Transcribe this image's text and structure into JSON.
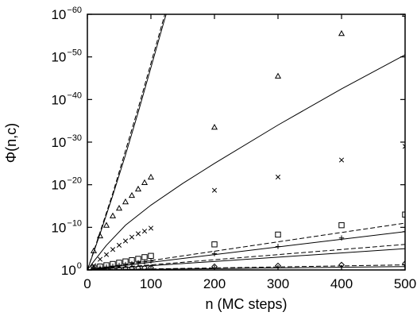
{
  "chart_data": {
    "type": "scatter",
    "xlabel": "n (MC steps)",
    "ylabel": "Φ(n,c)",
    "xlim": [
      0,
      500
    ],
    "ylim_log10": [
      -60,
      0
    ],
    "yscale": "log",
    "grid": false,
    "legend": "none",
    "x_ticks": [
      {
        "value": 0,
        "label": "0"
      },
      {
        "value": 100,
        "label": "100"
      },
      {
        "value": 200,
        "label": "200"
      },
      {
        "value": 300,
        "label": "300"
      },
      {
        "value": 400,
        "label": "400"
      },
      {
        "value": 500,
        "label": "500"
      }
    ],
    "y_ticks": [
      {
        "log10": 0,
        "base": "10",
        "exponent": "0"
      },
      {
        "log10": -10,
        "base": "10",
        "exponent": "−10"
      },
      {
        "log10": -20,
        "base": "10",
        "exponent": "−20"
      },
      {
        "log10": -30,
        "base": "10",
        "exponent": "−30"
      },
      {
        "log10": -40,
        "base": "10",
        "exponent": "−40"
      },
      {
        "log10": -50,
        "base": "10",
        "exponent": "−50"
      },
      {
        "log10": -60,
        "base": "10",
        "exponent": "−60"
      }
    ],
    "series": [
      {
        "marker": "diamond",
        "x": [
          10,
          20,
          30,
          40,
          50,
          60,
          70,
          80,
          90,
          100,
          200,
          300,
          400,
          500
        ],
        "log10_y": [
          -0.1,
          -0.15,
          -0.2,
          -0.25,
          -0.3,
          -0.35,
          -0.4,
          -0.45,
          -0.5,
          -0.55,
          -0.8,
          -1.0,
          -1.2,
          -1.5
        ]
      },
      {
        "marker": "plus",
        "x": [
          10,
          20,
          30,
          40,
          50,
          60,
          70,
          80,
          90,
          100,
          200,
          300,
          400,
          500
        ],
        "log10_y": [
          -0.3,
          -0.5,
          -0.7,
          -0.9,
          -1.1,
          -1.3,
          -1.5,
          -1.7,
          -1.9,
          -2.1,
          -3.8,
          -5.5,
          -7.5,
          -9.0
        ]
      },
      {
        "marker": "square",
        "x": [
          10,
          20,
          30,
          40,
          50,
          60,
          70,
          80,
          90,
          100,
          200,
          300,
          400,
          500
        ],
        "log10_y": [
          -0.5,
          -0.8,
          -1.1,
          -1.4,
          -1.7,
          -2.0,
          -2.3,
          -2.6,
          -3.0,
          -3.3,
          -6.0,
          -8.3,
          -10.5,
          -13.0
        ]
      },
      {
        "marker": "cross",
        "x": [
          10,
          20,
          30,
          40,
          50,
          60,
          70,
          80,
          90,
          100,
          200,
          300,
          400,
          500
        ],
        "log10_y": [
          -1.0,
          -2.5,
          -3.6,
          -4.8,
          -5.8,
          -6.8,
          -7.7,
          -8.5,
          -9.1,
          -9.8,
          -18.7,
          -21.8,
          -25.8,
          -29.0
        ]
      },
      {
        "marker": "triangle",
        "x": [
          10,
          20,
          30,
          40,
          50,
          60,
          70,
          80,
          90,
          100,
          200,
          300,
          400,
          500
        ],
        "log10_y": [
          -4.5,
          -8.0,
          -10.5,
          -12.7,
          -14.5,
          -16.0,
          -17.5,
          -19.0,
          -20.5,
          -21.8,
          -33.5,
          -45.5,
          -55.5,
          -60.0
        ]
      }
    ],
    "curves": [
      {
        "style": "solid",
        "x": [
          0,
          500
        ],
        "log10_y": [
          0,
          -0.8
        ]
      },
      {
        "style": "dashed",
        "x": [
          0,
          500
        ],
        "log10_y": [
          0,
          -1.2
        ]
      },
      {
        "style": "solid",
        "x": [
          0,
          500
        ],
        "log10_y": [
          0,
          -5.0
        ]
      },
      {
        "style": "dashed",
        "x": [
          0,
          500
        ],
        "log10_y": [
          0,
          -6.0
        ]
      },
      {
        "style": "solid",
        "x": [
          0,
          500
        ],
        "log10_y": [
          0,
          -9.0
        ]
      },
      {
        "style": "dashed",
        "x": [
          0,
          500
        ],
        "log10_y": [
          0,
          -11.0
        ]
      },
      {
        "style": "solid",
        "x": [
          0,
          10,
          30,
          60,
          100,
          150,
          200,
          300,
          400,
          500
        ],
        "log10_y": [
          0,
          -2.0,
          -5.8,
          -10.5,
          -15.2,
          -20.3,
          -25.0,
          -34.0,
          -42.5,
          -50.5
        ]
      },
      {
        "style": "solid",
        "x": [
          0,
          10,
          20,
          40,
          60,
          80,
          100,
          120,
          126
        ],
        "log10_y": [
          0,
          -4.2,
          -8.5,
          -17.5,
          -27.0,
          -37.0,
          -47.5,
          -58.0,
          -61.0
        ]
      },
      {
        "style": "dashed",
        "x": [
          0,
          10,
          20,
          40,
          60,
          80,
          100,
          120,
          124
        ],
        "log10_y": [
          0,
          -4.4,
          -8.9,
          -18.0,
          -28.0,
          -38.0,
          -48.5,
          -59.0,
          -61.0
        ]
      }
    ]
  }
}
